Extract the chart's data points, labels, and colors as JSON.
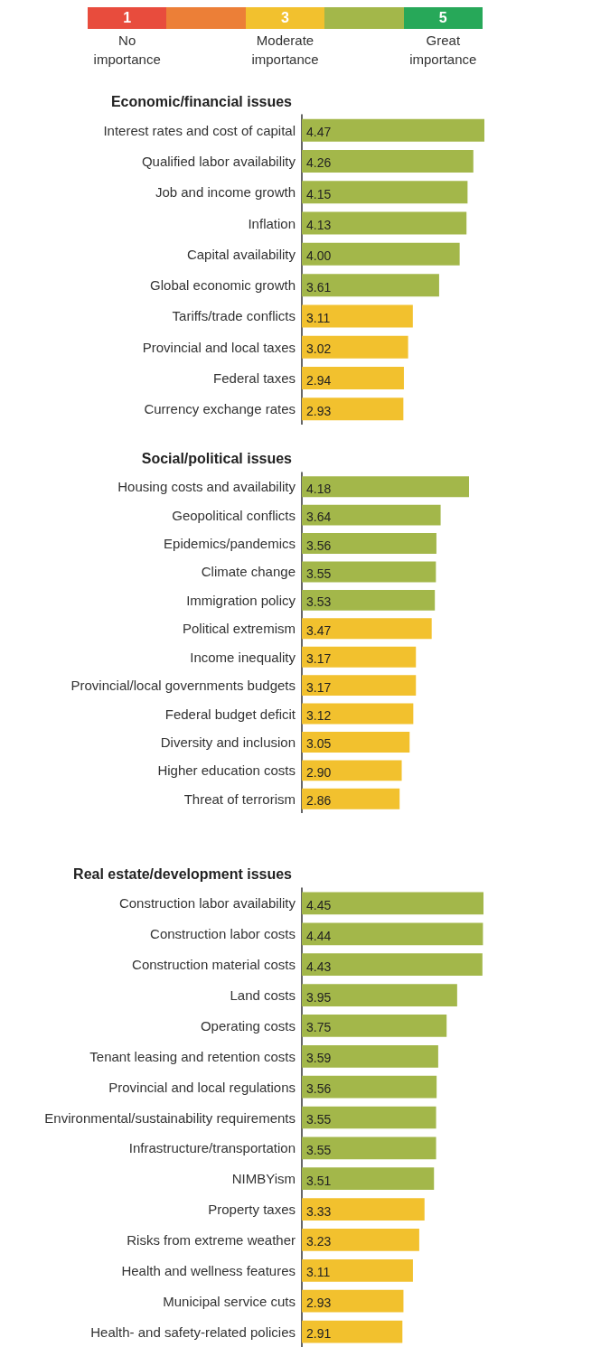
{
  "chart_data": [
    {
      "type": "other",
      "categories": [
        "1",
        null,
        "3",
        null,
        "5"
      ],
      "colors": [
        "#e84c3d",
        "#ec7f37",
        "#f2c12e",
        "#a3b74a",
        "#27a859"
      ],
      "annotations": [
        "No\nimportance",
        "Moderate\nimportance",
        "Great\nimportance"
      ]
    },
    {
      "type": "bar",
      "orientation": "horizontal",
      "title": "Economic/financial issues",
      "xlim": [
        1,
        4.47
      ],
      "tick_labels": "y",
      "categories": [
        "Interest rates and cost of capital",
        "Qualified labor availability",
        "Job and income growth",
        "Inflation",
        "Capital availability",
        "Global economic growth",
        "Tariffs/trade conflicts",
        "Provincial and local taxes",
        "Federal taxes",
        "Currency exchange rates"
      ],
      "values": [
        4.47,
        4.26,
        4.15,
        4.13,
        4.0,
        3.61,
        3.11,
        3.02,
        2.94,
        2.93
      ],
      "value_labels": [
        "4.47",
        "4.26",
        "4.15",
        "4.13",
        "4.00",
        "3.61",
        "3.11",
        "3.02",
        "2.94",
        "2.93"
      ],
      "colors": [
        "#a3b74a",
        "#a3b74a",
        "#a3b74a",
        "#a3b74a",
        "#a3b74a",
        "#a3b74a",
        "#f2c12e",
        "#f2c12e",
        "#f2c12e",
        "#f2c12e"
      ]
    },
    {
      "type": "bar",
      "orientation": "horizontal",
      "title": "Social/political issues",
      "xlim": [
        1,
        4.18
      ],
      "tick_labels": "y",
      "categories": [
        "Housing costs and availability",
        "Geopolitical conflicts",
        "Epidemics/pandemics",
        "Climate change",
        "Immigration policy",
        "Political extremism",
        "Income inequality",
        "Provincial/local governments budgets",
        "Federal budget deficit",
        "Diversity and inclusion",
        "Higher education costs",
        "Threat of terrorism"
      ],
      "values": [
        4.18,
        3.64,
        3.56,
        3.55,
        3.53,
        3.47,
        3.17,
        3.17,
        3.12,
        3.05,
        2.9,
        2.86
      ],
      "value_labels": [
        "4.18",
        "3.64",
        "3.56",
        "3.55",
        "3.53",
        "3.47",
        "3.17",
        "3.17",
        "3.12",
        "3.05",
        "2.90",
        "2.86"
      ],
      "colors": [
        "#a3b74a",
        "#a3b74a",
        "#a3b74a",
        "#a3b74a",
        "#a3b74a",
        "#f2c12e",
        "#f2c12e",
        "#f2c12e",
        "#f2c12e",
        "#f2c12e",
        "#f2c12e",
        "#f2c12e"
      ]
    },
    {
      "type": "bar",
      "orientation": "horizontal",
      "title": "Real estate/development issues",
      "xlim": [
        1,
        4.45
      ],
      "tick_labels": "y",
      "categories": [
        "Construction labor availability",
        "Construction labor costs",
        "Construction material costs",
        "Land costs",
        "Operating costs",
        "Tenant leasing and retention costs",
        "Provincial and local regulations",
        "Environmental/sustainability requirements",
        "Infrastructure/transportation",
        "NIMBYism",
        "Property taxes",
        "Risks from extreme weather",
        "Health and wellness features",
        "Municipal service cuts",
        "Health- and safety-related policies"
      ],
      "values": [
        4.45,
        4.44,
        4.43,
        3.95,
        3.75,
        3.59,
        3.56,
        3.55,
        3.55,
        3.51,
        3.33,
        3.23,
        3.11,
        2.93,
        2.91
      ],
      "value_labels": [
        "4.45",
        "4.44",
        "4.43",
        "3.95",
        "3.75",
        "3.59",
        "3.56",
        "3.55",
        "3.55",
        "3.51",
        "3.33",
        "3.23",
        "3.11",
        "2.93",
        "2.91"
      ],
      "colors": [
        "#a3b74a",
        "#a3b74a",
        "#a3b74a",
        "#a3b74a",
        "#a3b74a",
        "#a3b74a",
        "#a3b74a",
        "#a3b74a",
        "#a3b74a",
        "#a3b74a",
        "#f2c12e",
        "#f2c12e",
        "#f2c12e",
        "#f2c12e",
        "#f2c12e"
      ]
    }
  ]
}
